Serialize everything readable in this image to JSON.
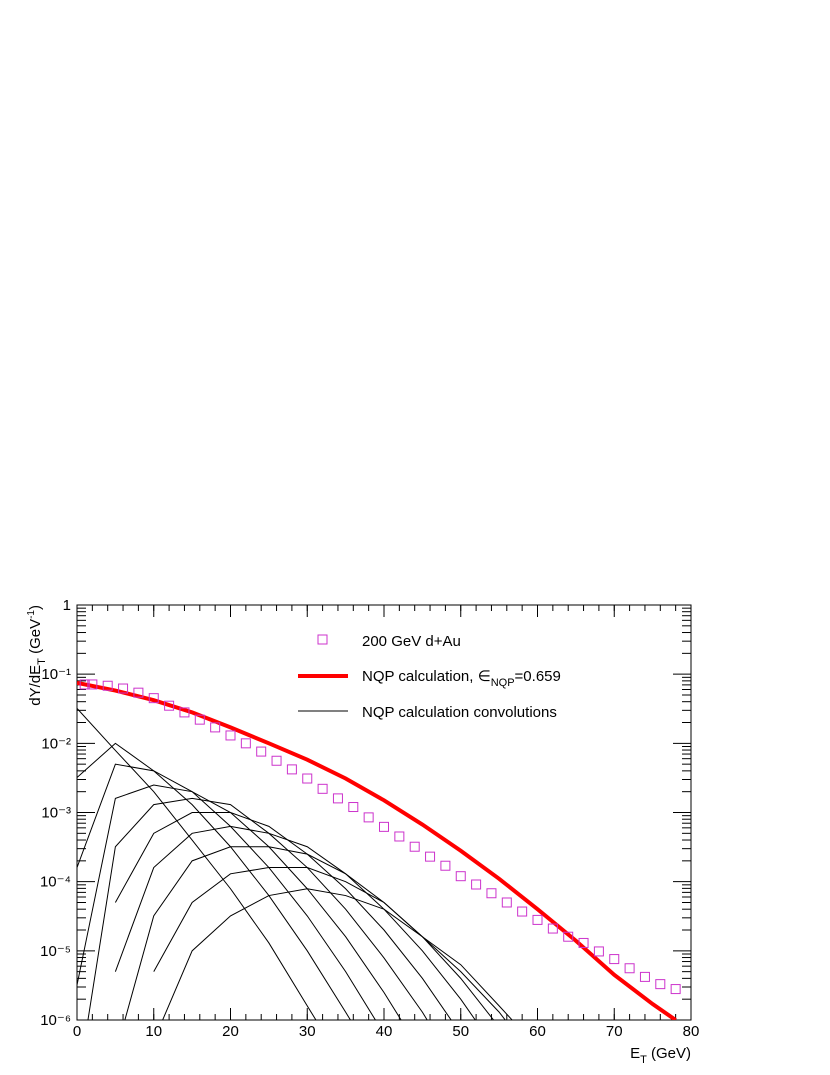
{
  "chart_data": {
    "type": "line",
    "xlabel": {
      "text": "E",
      "sub": "T",
      "tail": " (GeV)"
    },
    "ylabel": {
      "text": "dY/dE",
      "sub": "T",
      "mid": " (GeV",
      "sup": "-1",
      "tail": ")"
    },
    "xlim": [
      0,
      80
    ],
    "xticks": [
      0,
      10,
      20,
      30,
      40,
      50,
      60,
      70,
      80
    ],
    "ylim": [
      1e-06,
      1
    ],
    "log_y": true,
    "yticks": [
      {
        "value": 1e-06,
        "label": "10⁻⁶"
      },
      {
        "value": 1e-05,
        "label": "10⁻⁵"
      },
      {
        "value": 0.0001,
        "label": "10⁻⁴"
      },
      {
        "value": 0.001,
        "label": "10⁻³"
      },
      {
        "value": 0.01,
        "label": "10⁻²"
      },
      {
        "value": 0.1,
        "label": "10⁻¹"
      },
      1
    ],
    "points": {
      "name": "200 GeV d+Au",
      "color": "#cc33cc",
      "x": [
        1,
        2,
        4,
        6,
        8,
        10,
        12,
        14,
        16,
        18,
        20,
        22,
        24,
        26,
        28,
        30,
        32,
        34,
        36,
        38,
        40,
        42,
        44,
        46,
        48,
        50,
        52,
        54,
        56,
        58,
        60,
        62,
        64,
        66,
        68,
        70,
        72,
        74,
        76,
        78
      ],
      "values": [
        0.071,
        0.071,
        0.068,
        0.062,
        0.054,
        0.045,
        0.035,
        0.028,
        0.022,
        0.017,
        0.013,
        0.01,
        0.0076,
        0.0056,
        0.0042,
        0.0031,
        0.0022,
        0.0016,
        0.0012,
        0.00085,
        0.00062,
        0.00045,
        0.00032,
        0.00023,
        0.00017,
        0.00012,
        9.1e-05,
        6.8e-05,
        5e-05,
        3.7e-05,
        2.8e-05,
        2.1e-05,
        1.6e-05,
        1.3e-05,
        9.8e-06,
        7.6e-06,
        5.6e-06,
        4.2e-06,
        3.3e-06,
        2.8e-06
      ]
    },
    "fit": {
      "name": "NQP calculation, ",
      "name_symbol": "∈",
      "name_sub": "NQP",
      "name_tail": "=0.659",
      "color": "#ff0000",
      "x": [
        0,
        5,
        10,
        15,
        20,
        25,
        30,
        35,
        40,
        45,
        50,
        55,
        60,
        65,
        70,
        75,
        78
      ],
      "values": [
        0.075,
        0.058,
        0.042,
        0.028,
        0.017,
        0.01,
        0.0058,
        0.0031,
        0.0015,
        0.00067,
        0.00028,
        0.00011,
        4e-05,
        1.4e-05,
        4.5e-06,
        1.7e-06,
        1e-06
      ]
    },
    "convolutions": {
      "name": "NQP calculation convolutions",
      "color": "#000000",
      "x": [
        0,
        5,
        10,
        15,
        20,
        25,
        30,
        35,
        40,
        45,
        50,
        55,
        60,
        65
      ],
      "curves": [
        [
          0.032,
          0.0079,
          0.002,
          0.0004,
          7.9e-05,
          1.3e-05,
          1.6e-06,
          2e-07,
          null,
          null,
          null,
          null,
          null,
          null
        ],
        [
          0.0032,
          0.01,
          0.004,
          0.0013,
          0.00032,
          6.3e-05,
          1e-05,
          1.3e-06,
          1.6e-07,
          null,
          null,
          null,
          null,
          null
        ],
        [
          0.00016,
          0.005,
          0.004,
          0.002,
          0.00063,
          0.00016,
          3.2e-05,
          5e-06,
          6.3e-07,
          7.9e-08,
          null,
          null,
          null,
          null
        ],
        [
          3.2e-06,
          0.0016,
          0.0025,
          0.002,
          0.001,
          0.00032,
          7.9e-05,
          1.6e-05,
          2.5e-06,
          3.2e-07,
          null,
          null,
          null,
          null
        ],
        [
          1e-07,
          0.00032,
          0.0013,
          0.0016,
          0.0013,
          0.0005,
          0.00016,
          4e-05,
          7.9e-06,
          1.3e-06,
          1.6e-07,
          null,
          null,
          null
        ],
        [
          null,
          5e-05,
          0.0005,
          0.001,
          0.001,
          0.00063,
          0.00025,
          7.9e-05,
          2e-05,
          4e-06,
          6.3e-07,
          1e-07,
          null,
          null
        ],
        [
          null,
          5e-06,
          0.00016,
          0.0005,
          0.00063,
          0.0005,
          0.00032,
          0.00013,
          4e-05,
          1e-05,
          2e-06,
          3.2e-07,
          null,
          null
        ],
        [
          null,
          3.2e-07,
          3.2e-05,
          0.0002,
          0.00032,
          0.00032,
          0.00025,
          0.00013,
          5e-05,
          1.6e-05,
          4e-06,
          7.9e-07,
          1.3e-07,
          null
        ],
        [
          null,
          null,
          5e-06,
          5e-05,
          0.00013,
          0.00016,
          0.00016,
          0.0001,
          5e-05,
          1.6e-05,
          5e-06,
          1.3e-06,
          2.5e-07,
          null
        ],
        [
          null,
          null,
          5e-07,
          1e-05,
          3.2e-05,
          6.3e-05,
          7.9e-05,
          6.3e-05,
          4e-05,
          1.6e-05,
          6.3e-06,
          1.6e-06,
          4e-07,
          null
        ]
      ]
    }
  }
}
